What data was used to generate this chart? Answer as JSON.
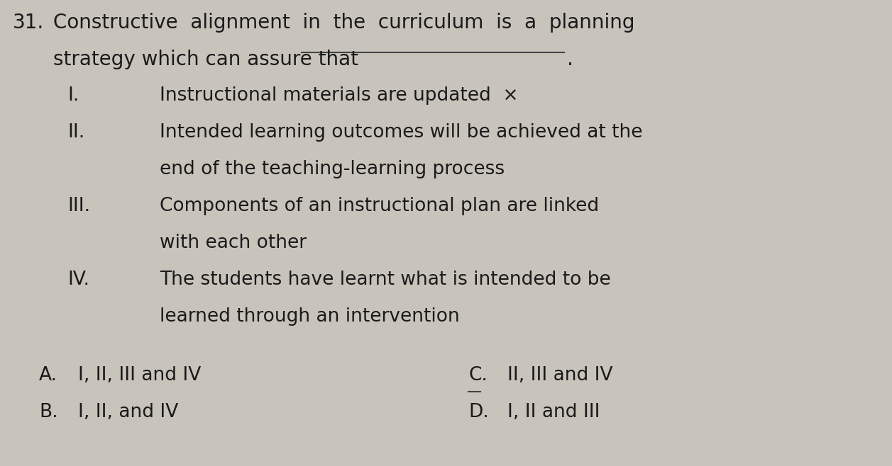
{
  "bg_color": "#c8c4bc",
  "text_color": "#1a1a1a",
  "question_number": "31.",
  "q_line1": "Constructive  alignment  in  the  curriculum  is  a  planning",
  "q_line2": "strategy which can assure that",
  "items": [
    {
      "numeral": "I.",
      "lines": [
        "Instructional materials are updated  ×"
      ]
    },
    {
      "numeral": "II.",
      "lines": [
        "Intended learning outcomes will be achieved at the",
        "end of the teaching-learning process"
      ]
    },
    {
      "numeral": "III.",
      "lines": [
        "Components of an instructional plan are linked",
        "with each other"
      ]
    },
    {
      "numeral": "IV.",
      "lines": [
        "The students have learnt what is intended to be",
        "learned through an intervention"
      ]
    }
  ],
  "choices_col1": [
    {
      "label": "A.",
      "text": "I, II, III and IV"
    },
    {
      "label": "B.",
      "text": "I, II, and IV"
    }
  ],
  "choices_col2": [
    {
      "label": "C.",
      "text": "II, III and IV"
    },
    {
      "label": "D.",
      "text": "I, II and III"
    }
  ],
  "underline_color": "#444444",
  "fontsize": 19,
  "fontsize_q": 20
}
